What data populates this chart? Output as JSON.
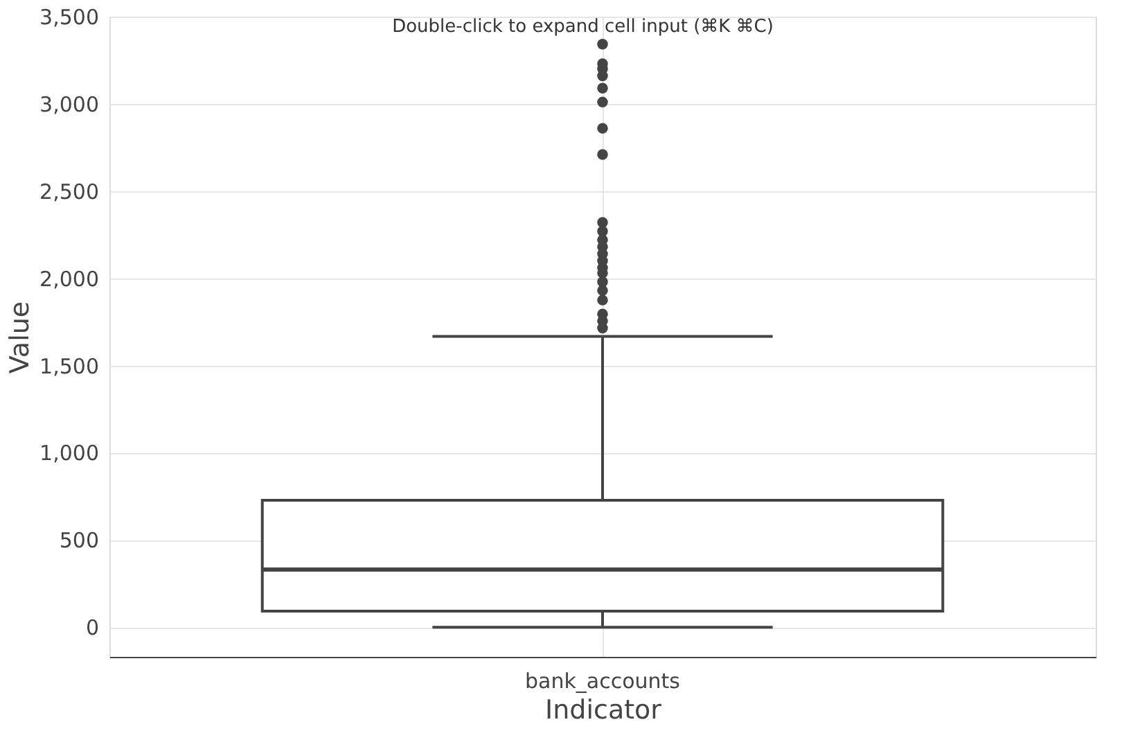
{
  "chart_data": {
    "type": "box",
    "xlabel": "Indicator",
    "ylabel": "Value",
    "categories": [
      "bank_accounts"
    ],
    "series": [
      {
        "color": "#444444",
        "boxes": [
          {
            "low": 0,
            "q1": 92,
            "median": 330,
            "q3": 728,
            "high": 1667,
            "outliers": [
              1715,
              1755,
              1795,
              1875,
              1930,
              1980,
              2030,
              2060,
              2100,
              2140,
              2180,
              2220,
              2270,
              2320,
              2710,
              2860,
              3010,
              3090,
              3160,
              3200,
              3230,
              3342
            ]
          }
        ]
      }
    ],
    "ylim": [
      -170,
      3500
    ],
    "yticks": [
      0,
      500,
      {
        "value": 1000,
        "label": "1,000"
      },
      {
        "value": 1500,
        "label": "1,500"
      },
      {
        "value": 2000,
        "label": "2,000"
      },
      {
        "value": 2500,
        "label": "2,500"
      },
      {
        "value": 3000,
        "label": "3,000"
      },
      {
        "value": 3500,
        "label": "3,500"
      }
    ],
    "grid": true,
    "annotations": [
      "Double-click to expand cell input (⌘K ⌘C)"
    ]
  }
}
